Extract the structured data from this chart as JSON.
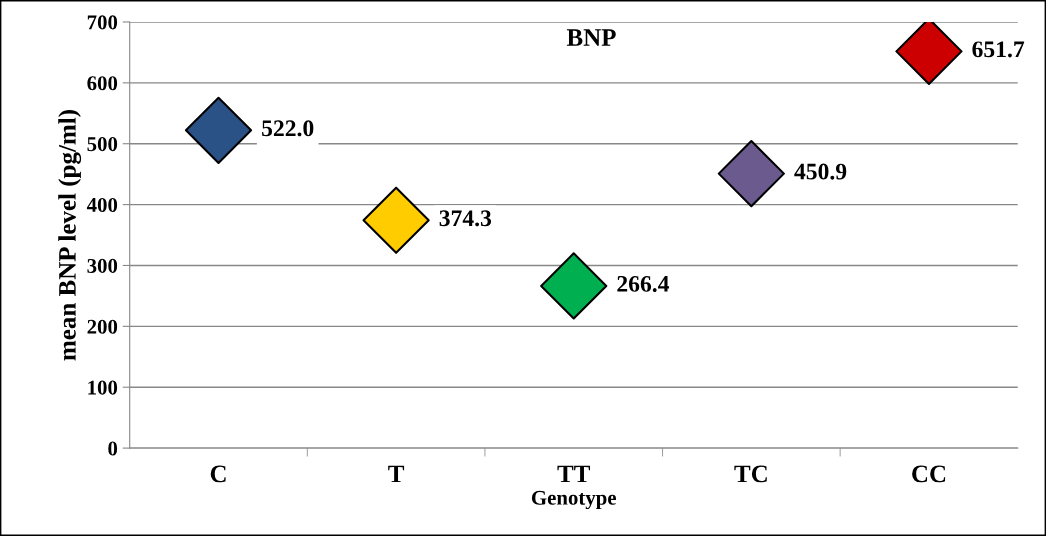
{
  "chart_data": {
    "type": "scatter",
    "title": "BNP",
    "xlabel": "Genotype",
    "ylabel": "mean BNP level (pg/ml)",
    "categories": [
      "C",
      "T",
      "TT",
      "TC",
      "CC"
    ],
    "values": [
      522.0,
      374.3,
      266.4,
      450.9,
      651.7
    ],
    "colors": [
      "#2b5287",
      "#ffcc00",
      "#00b050",
      "#6a5a8e",
      "#cc0000"
    ],
    "value_labels": [
      "522.0",
      "374.3",
      "266.4",
      "450.9",
      "651.7"
    ],
    "ylim": [
      0,
      700
    ],
    "yticks": [
      0,
      100,
      200,
      300,
      400,
      500,
      600,
      700
    ],
    "grid": "y",
    "legend": false,
    "marker": "diamond"
  }
}
